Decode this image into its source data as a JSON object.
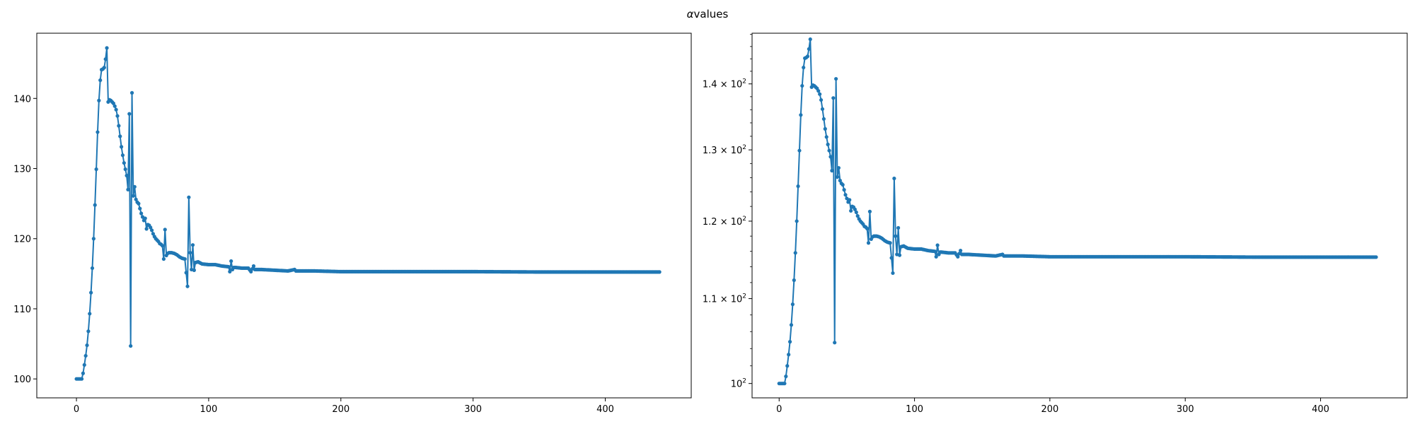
{
  "figure": {
    "title_symbol": "α",
    "title_text": "values"
  },
  "chart_data": [
    {
      "type": "line",
      "scale": "linear",
      "title": "",
      "xlabel": "",
      "ylabel": "",
      "xlim": [
        -30,
        465
      ],
      "ylim": [
        97.3,
        149.3
      ],
      "xticks": [
        0,
        100,
        200,
        300,
        400
      ],
      "yticks": [
        100,
        110,
        120,
        130,
        140
      ],
      "ytick_labels": [
        "100",
        "110",
        "120",
        "130",
        "140"
      ],
      "grid": false,
      "legend": "none",
      "color": "#1f77b4",
      "marker": "circle",
      "series": [
        {
          "keypoints": [
            [
              0,
              100
            ],
            [
              4,
              100
            ],
            [
              5,
              100.8
            ],
            [
              6,
              102
            ],
            [
              7,
              103.3
            ],
            [
              8,
              104.8
            ],
            [
              9,
              106.8
            ],
            [
              10,
              109.3
            ],
            [
              11,
              112.3
            ],
            [
              12,
              115.8
            ],
            [
              13,
              120.0
            ],
            [
              14,
              124.8
            ],
            [
              15,
              129.9
            ],
            [
              16,
              135.2
            ],
            [
              17,
              139.7
            ],
            [
              18,
              142.6
            ],
            [
              19,
              144.1
            ],
            [
              20,
              144.2
            ],
            [
              21,
              144.4
            ],
            [
              22,
              145.6
            ],
            [
              23,
              147.2
            ],
            [
              24,
              139.5
            ],
            [
              25,
              139.8
            ],
            [
              26,
              139.7
            ],
            [
              27,
              139.5
            ],
            [
              28,
              139.3
            ],
            [
              29,
              138.9
            ],
            [
              30,
              138.4
            ],
            [
              31,
              137.5
            ],
            [
              32,
              136.1
            ],
            [
              33,
              134.6
            ],
            [
              34,
              133.1
            ],
            [
              35,
              131.9
            ],
            [
              36,
              130.8
            ],
            [
              37,
              129.9
            ],
            [
              38,
              129.0
            ],
            [
              39,
              127.0
            ],
            [
              40,
              137.8
            ],
            [
              41,
              104.7
            ],
            [
              42,
              140.8
            ],
            [
              43,
              126.1
            ],
            [
              44,
              127.4
            ],
            [
              45,
              125.6
            ],
            [
              46,
              125.2
            ],
            [
              47,
              125.0
            ],
            [
              48,
              124.3
            ],
            [
              49,
              123.6
            ],
            [
              50,
              123.1
            ],
            [
              51,
              122.6
            ],
            [
              52,
              122.9
            ],
            [
              53,
              121.4
            ],
            [
              54,
              122.0
            ],
            [
              55,
              121.9
            ],
            [
              56,
              121.6
            ],
            [
              57,
              121.2
            ],
            [
              58,
              120.7
            ],
            [
              59,
              120.3
            ],
            [
              60,
              120.0
            ],
            [
              61,
              119.8
            ],
            [
              62,
              119.6
            ],
            [
              63,
              119.3
            ],
            [
              64,
              119.2
            ],
            [
              65,
              119.0
            ],
            [
              66,
              117.1
            ],
            [
              67,
              121.3
            ],
            [
              68,
              117.6
            ],
            [
              69,
              117.9
            ],
            [
              70,
              118.0
            ],
            [
              72,
              118.0
            ],
            [
              74,
              117.9
            ],
            [
              76,
              117.7
            ],
            [
              78,
              117.4
            ],
            [
              80,
              117.2
            ],
            [
              82,
              117.1
            ],
            [
              84,
              113.2
            ],
            [
              85,
              125.9
            ],
            [
              86,
              118.0
            ],
            [
              87,
              115.6
            ],
            [
              88,
              119.1
            ],
            [
              89,
              115.5
            ],
            [
              90,
              116.6
            ],
            [
              92,
              116.7
            ],
            [
              95,
              116.4
            ],
            [
              100,
              116.3
            ],
            [
              105,
              116.3
            ],
            [
              110,
              116.1
            ],
            [
              115,
              116.0
            ],
            [
              116,
              115.3
            ],
            [
              117,
              116.8
            ],
            [
              118,
              115.6
            ],
            [
              119,
              115.9
            ],
            [
              120,
              115.9
            ],
            [
              125,
              115.8
            ],
            [
              130,
              115.8
            ],
            [
              132,
              115.3
            ],
            [
              134,
              116.1
            ],
            [
              135,
              115.6
            ],
            [
              140,
              115.6
            ],
            [
              150,
              115.5
            ],
            [
              160,
              115.4
            ],
            [
              165,
              115.6
            ],
            [
              166,
              115.4
            ],
            [
              180,
              115.4
            ],
            [
              200,
              115.3
            ],
            [
              248,
              115.3
            ],
            [
              270,
              115.3
            ],
            [
              300,
              115.3
            ],
            [
              350,
              115.25
            ],
            [
              400,
              115.25
            ],
            [
              441,
              115.25
            ]
          ]
        }
      ]
    },
    {
      "type": "line",
      "scale": "log",
      "title": "",
      "xlabel": "",
      "ylabel": "",
      "xlim": [
        -20,
        464
      ],
      "ylim": [
        98.4,
        148.2
      ],
      "xticks": [
        0,
        100,
        200,
        300,
        400
      ],
      "yticks": [
        100,
        110,
        120,
        130,
        140
      ],
      "ytick_labels": [
        {
          "base": "10",
          "exp": "2",
          "prefix": ""
        },
        {
          "base": "10",
          "exp": "2",
          "prefix": "1.1 × "
        },
        {
          "base": "10",
          "exp": "2",
          "prefix": "1.2 × "
        },
        {
          "base": "10",
          "exp": "2",
          "prefix": "1.3 × "
        },
        {
          "base": "10",
          "exp": "2",
          "prefix": "1.4 × "
        }
      ],
      "grid": false,
      "legend": "none",
      "color": "#1f77b4",
      "marker": "circle",
      "series": [
        {
          "keypoints": [
            [
              0,
              100
            ],
            [
              4,
              100
            ],
            [
              5,
              100.8
            ],
            [
              6,
              102
            ],
            [
              7,
              103.3
            ],
            [
              8,
              104.8
            ],
            [
              9,
              106.8
            ],
            [
              10,
              109.3
            ],
            [
              11,
              112.3
            ],
            [
              12,
              115.8
            ],
            [
              13,
              120.0
            ],
            [
              14,
              124.8
            ],
            [
              15,
              129.9
            ],
            [
              16,
              135.2
            ],
            [
              17,
              139.7
            ],
            [
              18,
              142.6
            ],
            [
              19,
              144.1
            ],
            [
              20,
              144.2
            ],
            [
              21,
              144.4
            ],
            [
              22,
              145.6
            ],
            [
              23,
              147.2
            ],
            [
              24,
              139.5
            ],
            [
              25,
              139.8
            ],
            [
              26,
              139.7
            ],
            [
              27,
              139.5
            ],
            [
              28,
              139.3
            ],
            [
              29,
              138.9
            ],
            [
              30,
              138.4
            ],
            [
              31,
              137.5
            ],
            [
              32,
              136.1
            ],
            [
              33,
              134.6
            ],
            [
              34,
              133.1
            ],
            [
              35,
              131.9
            ],
            [
              36,
              130.8
            ],
            [
              37,
              129.9
            ],
            [
              38,
              129.0
            ],
            [
              39,
              127.0
            ],
            [
              40,
              137.8
            ],
            [
              41,
              104.7
            ],
            [
              42,
              140.8
            ],
            [
              43,
              126.1
            ],
            [
              44,
              127.4
            ],
            [
              45,
              125.6
            ],
            [
              46,
              125.2
            ],
            [
              47,
              125.0
            ],
            [
              48,
              124.3
            ],
            [
              49,
              123.6
            ],
            [
              50,
              123.1
            ],
            [
              51,
              122.6
            ],
            [
              52,
              122.9
            ],
            [
              53,
              121.4
            ],
            [
              54,
              122.0
            ],
            [
              55,
              121.9
            ],
            [
              56,
              121.6
            ],
            [
              57,
              121.2
            ],
            [
              58,
              120.7
            ],
            [
              59,
              120.3
            ],
            [
              60,
              120.0
            ],
            [
              61,
              119.8
            ],
            [
              62,
              119.6
            ],
            [
              63,
              119.3
            ],
            [
              64,
              119.2
            ],
            [
              65,
              119.0
            ],
            [
              66,
              117.1
            ],
            [
              67,
              121.3
            ],
            [
              68,
              117.6
            ],
            [
              69,
              117.9
            ],
            [
              70,
              118.0
            ],
            [
              72,
              118.0
            ],
            [
              74,
              117.9
            ],
            [
              76,
              117.7
            ],
            [
              78,
              117.4
            ],
            [
              80,
              117.2
            ],
            [
              82,
              117.1
            ],
            [
              84,
              113.2
            ],
            [
              85,
              125.9
            ],
            [
              86,
              118.0
            ],
            [
              87,
              115.6
            ],
            [
              88,
              119.1
            ],
            [
              89,
              115.5
            ],
            [
              90,
              116.6
            ],
            [
              92,
              116.7
            ],
            [
              95,
              116.4
            ],
            [
              100,
              116.3
            ],
            [
              105,
              116.3
            ],
            [
              110,
              116.1
            ],
            [
              115,
              116.0
            ],
            [
              116,
              115.3
            ],
            [
              117,
              116.8
            ],
            [
              118,
              115.6
            ],
            [
              119,
              115.9
            ],
            [
              120,
              115.9
            ],
            [
              125,
              115.8
            ],
            [
              130,
              115.8
            ],
            [
              132,
              115.3
            ],
            [
              134,
              116.1
            ],
            [
              135,
              115.6
            ],
            [
              140,
              115.6
            ],
            [
              150,
              115.5
            ],
            [
              160,
              115.4
            ],
            [
              165,
              115.6
            ],
            [
              166,
              115.4
            ],
            [
              180,
              115.4
            ],
            [
              200,
              115.3
            ],
            [
              248,
              115.3
            ],
            [
              270,
              115.3
            ],
            [
              300,
              115.3
            ],
            [
              350,
              115.25
            ],
            [
              400,
              115.25
            ],
            [
              441,
              115.25
            ]
          ]
        }
      ]
    }
  ]
}
